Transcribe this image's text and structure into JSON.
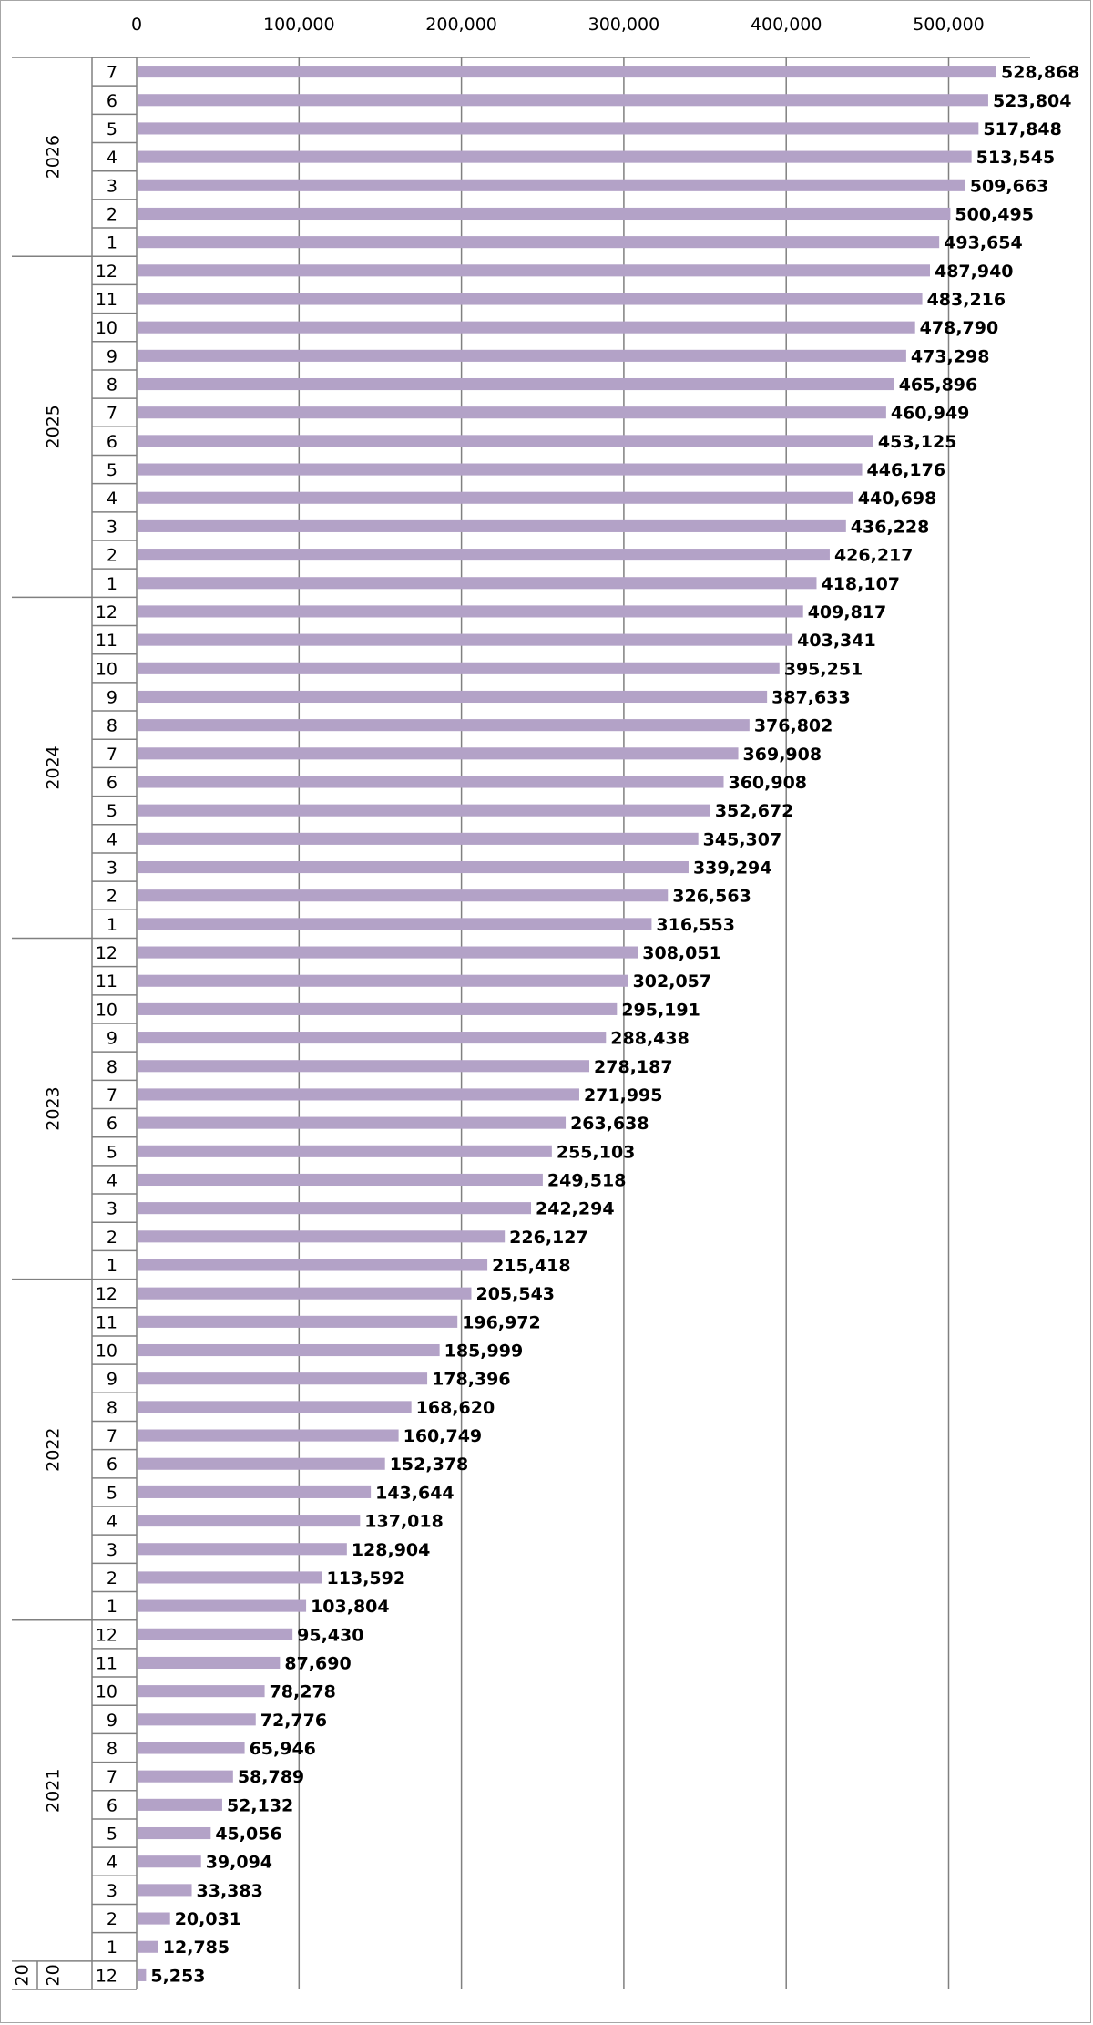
{
  "chart_data": {
    "type": "bar",
    "orientation": "horizontal",
    "title": "",
    "xlabel": "",
    "ylabel": "",
    "xlim": [
      0,
      550000
    ],
    "ticks": [
      0,
      100000,
      200000,
      300000,
      400000,
      500000
    ],
    "tick_labels": [
      "0",
      "100,000",
      "200,000",
      "300,000",
      "400,000",
      "500,000"
    ],
    "grid": true,
    "legend": "none",
    "bar_color": "#b3a2c7",
    "groups": [
      {
        "year": "2026",
        "months": [
          "7",
          "6",
          "5",
          "4",
          "3",
          "2",
          "1"
        ],
        "values": [
          528868,
          523804,
          517848,
          513545,
          509663,
          500495,
          493654
        ],
        "labels": [
          "528,868",
          "523,804",
          "517,848",
          "513,545",
          "509,663",
          "500,495",
          "493,654"
        ]
      },
      {
        "year": "2025",
        "months": [
          "12",
          "11",
          "10",
          "9",
          "8",
          "7",
          "6",
          "5",
          "4",
          "3",
          "2",
          "1"
        ],
        "values": [
          487940,
          483216,
          478790,
          473298,
          465896,
          460949,
          453125,
          446176,
          440698,
          436228,
          426217,
          418107
        ],
        "labels": [
          "487,940",
          "483,216",
          "478,790",
          "473,298",
          "465,896",
          "460,949",
          "453,125",
          "446,176",
          "440,698",
          "436,228",
          "426,217",
          "418,107"
        ]
      },
      {
        "year": "2024",
        "months": [
          "12",
          "11",
          "10",
          "9",
          "8",
          "7",
          "6",
          "5",
          "4",
          "3",
          "2",
          "1"
        ],
        "values": [
          409817,
          403341,
          395251,
          387633,
          376802,
          369908,
          360908,
          352672,
          345307,
          339294,
          326563,
          316553
        ],
        "labels": [
          "409,817",
          "403,341",
          "395,251",
          "387,633",
          "376,802",
          "369,908",
          "360,908",
          "352,672",
          "345,307",
          "339,294",
          "326,563",
          "316,553"
        ]
      },
      {
        "year": "2023",
        "months": [
          "12",
          "11",
          "10",
          "9",
          "8",
          "7",
          "6",
          "5",
          "4",
          "3",
          "2",
          "1"
        ],
        "values": [
          308051,
          302057,
          295191,
          288438,
          278187,
          271995,
          263638,
          255103,
          249518,
          242294,
          226127,
          215418
        ],
        "labels": [
          "308,051",
          "302,057",
          "295,191",
          "288,438",
          "278,187",
          "271,995",
          "263,638",
          "255,103",
          "249,518",
          "242,294",
          "226,127",
          "215,418"
        ]
      },
      {
        "year": "2022",
        "months": [
          "12",
          "11",
          "10",
          "9",
          "8",
          "7",
          "6",
          "5",
          "4",
          "3",
          "2",
          "1"
        ],
        "values": [
          205543,
          196972,
          185999,
          178396,
          168620,
          160749,
          152378,
          143644,
          137018,
          128904,
          113592,
          103804
        ],
        "labels": [
          "205,543",
          "196,972",
          "185,999",
          "178,396",
          "168,620",
          "160,749",
          "152,378",
          "143,644",
          "137,018",
          "128,904",
          "113,592",
          "103,804"
        ]
      },
      {
        "year": "2021",
        "months": [
          "12",
          "11",
          "10",
          "9",
          "8",
          "7",
          "6",
          "5",
          "4",
          "3",
          "2",
          "1"
        ],
        "values": [
          95430,
          87690,
          78278,
          72776,
          65946,
          58789,
          52132,
          45056,
          39094,
          33383,
          20031,
          12785
        ],
        "labels": [
          "95,430",
          "87,690",
          "78,278",
          "72,776",
          "65,946",
          "58,789",
          "52,132",
          "45,056",
          "39,094",
          "33,383",
          "20,031",
          "12,785"
        ]
      },
      {
        "year": "2020",
        "year_parts": [
          "20",
          "20"
        ],
        "months": [
          "12"
        ],
        "values": [
          5253
        ],
        "labels": [
          "5,253"
        ]
      }
    ]
  }
}
